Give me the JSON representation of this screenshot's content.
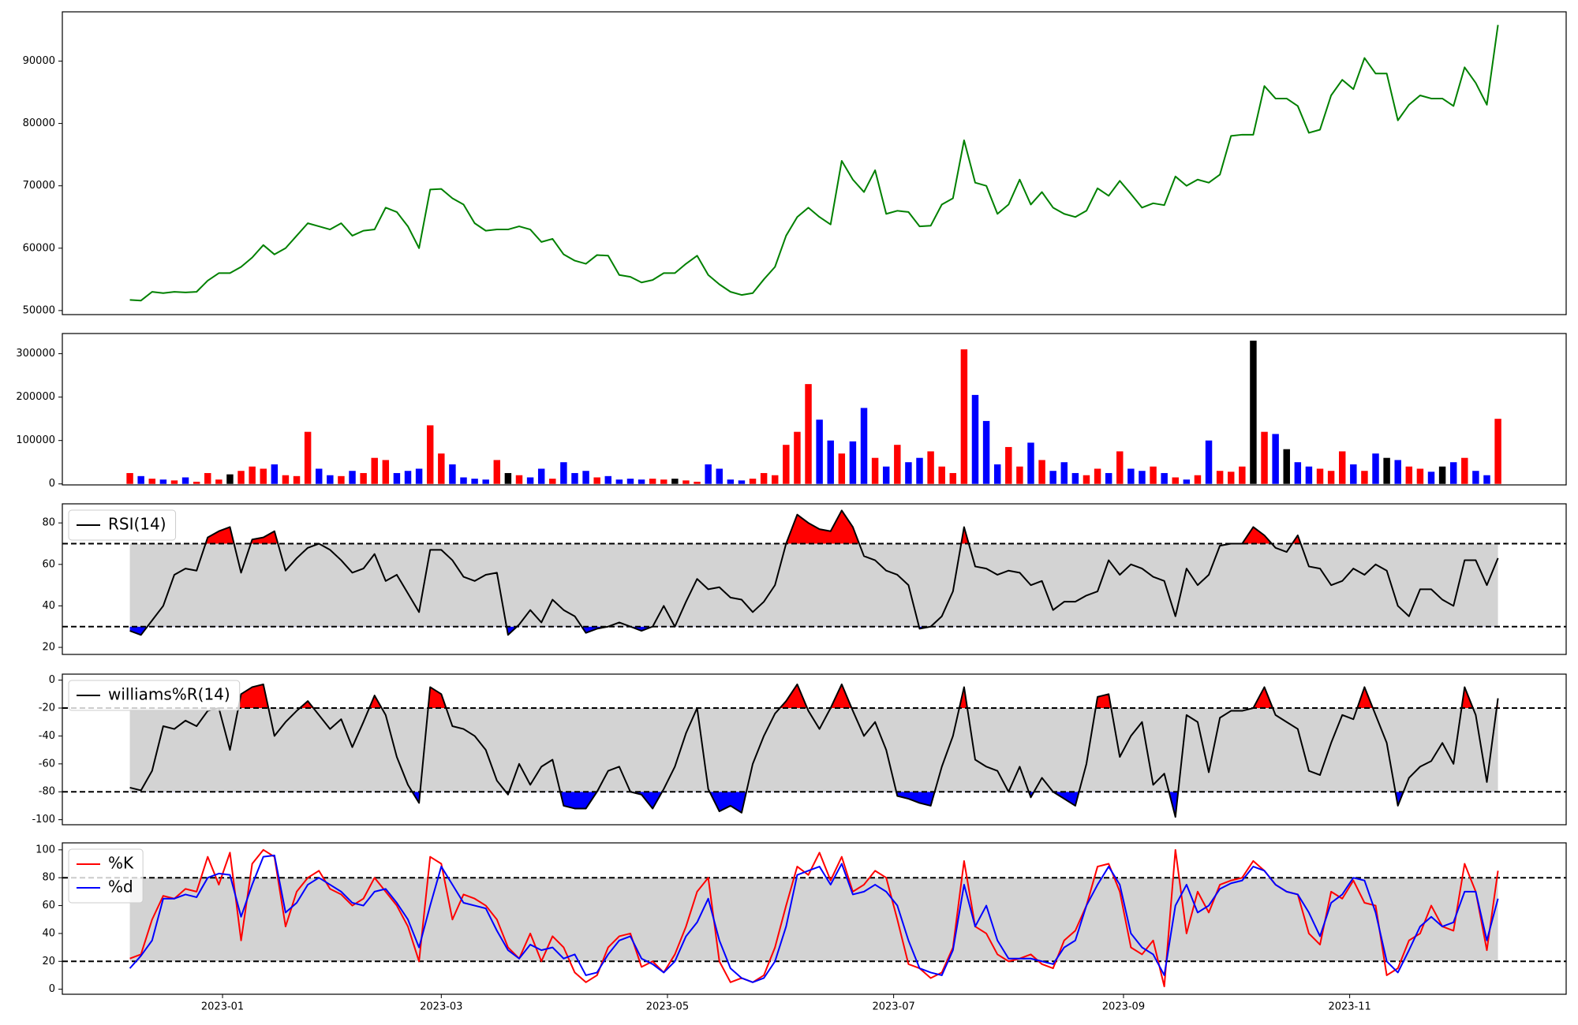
{
  "chart_data": [
    {
      "type": "line",
      "series": [
        {
          "color": "green",
          "values": [
            51700,
            51600,
            53000,
            52800,
            53000,
            52900,
            53000,
            54800,
            56000,
            56000,
            57000,
            58500,
            60500,
            59000,
            60000,
            62000,
            64000,
            63500,
            63000,
            64000,
            62000,
            62800,
            63000,
            66500,
            65800,
            63500,
            60000,
            69400,
            69500,
            68000,
            67000,
            64000,
            62800,
            63000,
            63000,
            63500,
            63000,
            61000,
            61500,
            59000,
            58000,
            57500,
            58900,
            58800,
            55700,
            55400,
            54500,
            54900,
            56000,
            56000,
            57500,
            58800,
            55700,
            54200,
            53000,
            52500,
            52800,
            55000,
            57000,
            62000,
            65000,
            66500,
            65000,
            63800,
            74000,
            71000,
            69000,
            72500,
            65500,
            66000,
            65800,
            63500,
            63600,
            67000,
            68000,
            77300,
            70500,
            70000,
            65500,
            67000,
            71000,
            67000,
            69000,
            66500,
            65500,
            65000,
            66000,
            69600,
            68400,
            70800,
            68700,
            66500,
            67200,
            66900,
            71500,
            70000,
            71000,
            70500,
            71800,
            78000,
            78200,
            78200,
            86000,
            84000,
            84000,
            82800,
            78500,
            79000,
            84500,
            87000,
            85500,
            90500,
            88000,
            88000,
            80500,
            83000,
            84500,
            84000,
            84000,
            82800,
            89000,
            86500,
            83000,
            95800
          ]
        }
      ],
      "xlim": [
        -6.07,
        129.13
      ],
      "ylim": [
        49350,
        97900
      ],
      "yticks": [
        50000,
        60000,
        70000,
        80000,
        90000
      ]
    },
    {
      "type": "bar",
      "values": [
        25000,
        18000,
        12000,
        10000,
        8000,
        15000,
        5000,
        25000,
        10000,
        22000,
        30000,
        40000,
        35000,
        45000,
        20000,
        18000,
        120000,
        35000,
        20000,
        18000,
        30000,
        25000,
        60000,
        55000,
        25000,
        30000,
        35000,
        135000,
        70000,
        45000,
        15000,
        12000,
        10000,
        55000,
        25000,
        20000,
        15000,
        35000,
        12000,
        50000,
        25000,
        30000,
        15000,
        18000,
        10000,
        12000,
        10000,
        12000,
        10000,
        12000,
        8000,
        5000,
        45000,
        35000,
        10000,
        8000,
        12000,
        25000,
        20000,
        90000,
        120000,
        230000,
        148000,
        100000,
        70000,
        98000,
        175000,
        60000,
        40000,
        90000,
        50000,
        60000,
        75000,
        40000,
        25000,
        310000,
        205000,
        145000,
        45000,
        85000,
        40000,
        95000,
        55000,
        30000,
        50000,
        25000,
        20000,
        35000,
        25000,
        75000,
        35000,
        30000,
        40000,
        25000,
        15000,
        10000,
        20000,
        100000,
        30000,
        28000,
        40000,
        330000,
        120000,
        115000,
        80000,
        50000,
        40000,
        35000,
        30000,
        75000,
        45000,
        30000,
        70000,
        60000,
        55000,
        40000,
        35000,
        28000,
        40000,
        50000,
        60000,
        30000,
        20000,
        150000
      ],
      "up_color": "red",
      "down_color": "blue",
      "flat_color": "black",
      "xlim": [
        -6.07,
        129.13
      ],
      "ylim": [
        -2300,
        346500
      ],
      "yticks": [
        0,
        100000,
        200000,
        300000
      ]
    },
    {
      "type": "line",
      "series": [
        {
          "name": "RSI(14)",
          "color": "black",
          "values": [
            28,
            26,
            33,
            40,
            55,
            58,
            57,
            73,
            76,
            78,
            56,
            72,
            73,
            76,
            57,
            63,
            68,
            70,
            67,
            62,
            56,
            58,
            65,
            52,
            55,
            46,
            37,
            67,
            67,
            62,
            54,
            52,
            55,
            56,
            26,
            31,
            38,
            32,
            43,
            38,
            35,
            27,
            29,
            30,
            32,
            30,
            28,
            30,
            40,
            30,
            42,
            53,
            48,
            49,
            44,
            43,
            37,
            42,
            50,
            70,
            84,
            80,
            77,
            76,
            86,
            78,
            64,
            62,
            57,
            55,
            50,
            29,
            30,
            35,
            47,
            78,
            59,
            58,
            55,
            57,
            56,
            50,
            52,
            38,
            42,
            42,
            45,
            47,
            62,
            55,
            60,
            58,
            54,
            52,
            35,
            58,
            50,
            55,
            69,
            70,
            70,
            78,
            74,
            68,
            66,
            74,
            59,
            58,
            50,
            52,
            58,
            55,
            60,
            57,
            40,
            35,
            48,
            48,
            43,
            40,
            62,
            62,
            50,
            63
          ]
        }
      ],
      "bands": [
        30,
        70
      ],
      "band_color": "lightgray",
      "upper_color": "red",
      "lower_color": "blue",
      "legend": "upper left",
      "xlim": [
        -6.07,
        129.13
      ],
      "ylim": [
        16.6,
        89.2
      ],
      "yticks": [
        20,
        40,
        60,
        80
      ]
    },
    {
      "type": "line",
      "series": [
        {
          "name": "williams%R(14)",
          "color": "black",
          "values": [
            -77,
            -79,
            -65,
            -33,
            -35,
            -29,
            -33,
            -22,
            -20,
            -50,
            -10,
            -5,
            -3,
            -40,
            -30,
            -22,
            -15,
            -25,
            -35,
            -28,
            -48,
            -30,
            -11,
            -25,
            -55,
            -75,
            -88,
            -5,
            -10,
            -33,
            -35,
            -40,
            -50,
            -72,
            -82,
            -60,
            -75,
            -62,
            -57,
            -90,
            -92,
            -92,
            -80,
            -65,
            -62,
            -80,
            -82,
            -92,
            -78,
            -62,
            -38,
            -20,
            -78,
            -94,
            -90,
            -95,
            -60,
            -40,
            -24,
            -15,
            -3,
            -22,
            -35,
            -20,
            -3,
            -22,
            -40,
            -30,
            -50,
            -83,
            -85,
            -88,
            -90,
            -62,
            -40,
            -5,
            -57,
            -62,
            -65,
            -80,
            -62,
            -84,
            -70,
            -80,
            -85,
            -90,
            -60,
            -12,
            -10,
            -55,
            -40,
            -30,
            -75,
            -67,
            -98,
            -25,
            -30,
            -66,
            -27,
            -22,
            -22,
            -20,
            -5,
            -25,
            -30,
            -35,
            -65,
            -68,
            -45,
            -25,
            -28,
            -5,
            -25,
            -45,
            -90,
            -70,
            -62,
            -58,
            -45,
            -60,
            -5,
            -25,
            -73,
            -13
          ]
        }
      ],
      "bands": [
        -80,
        -20
      ],
      "band_color": "lightgray",
      "upper_color": "red",
      "lower_color": "blue",
      "legend": "upper left",
      "xlim": [
        -6.07,
        129.13
      ],
      "ylim": [
        -103.6,
        4.3
      ],
      "yticks": [
        -100,
        -80,
        -60,
        -40,
        -20,
        0
      ]
    },
    {
      "type": "line",
      "series": [
        {
          "name": "%K",
          "color": "red",
          "values": [
            22,
            25,
            50,
            67,
            65,
            72,
            70,
            95,
            75,
            98,
            35,
            90,
            100,
            95,
            45,
            70,
            80,
            85,
            72,
            68,
            60,
            65,
            80,
            70,
            60,
            45,
            20,
            95,
            90,
            50,
            68,
            65,
            60,
            50,
            30,
            22,
            40,
            20,
            38,
            30,
            12,
            5,
            10,
            30,
            38,
            40,
            16,
            20,
            12,
            25,
            45,
            70,
            80,
            20,
            5,
            8,
            5,
            10,
            30,
            60,
            88,
            82,
            98,
            78,
            95,
            70,
            75,
            85,
            80,
            50,
            18,
            15,
            8,
            12,
            30,
            92,
            45,
            40,
            25,
            20,
            22,
            25,
            18,
            15,
            35,
            42,
            60,
            88,
            90,
            70,
            30,
            25,
            35,
            2,
            100,
            40,
            70,
            55,
            75,
            78,
            80,
            92,
            85,
            75,
            70,
            68,
            40,
            32,
            70,
            65,
            78,
            62,
            60,
            10,
            15,
            35,
            40,
            60,
            45,
            42,
            90,
            70,
            28,
            85
          ]
        },
        {
          "name": "%d",
          "color": "blue",
          "values": [
            15,
            24,
            35,
            65,
            65,
            68,
            66,
            80,
            83,
            82,
            52,
            75,
            95,
            96,
            55,
            62,
            75,
            80,
            75,
            70,
            62,
            60,
            70,
            72,
            62,
            50,
            30,
            60,
            88,
            75,
            62,
            60,
            58,
            42,
            28,
            22,
            32,
            28,
            30,
            22,
            25,
            10,
            12,
            25,
            35,
            38,
            22,
            18,
            12,
            20,
            38,
            48,
            65,
            35,
            15,
            8,
            5,
            8,
            20,
            45,
            82,
            85,
            88,
            75,
            90,
            68,
            70,
            75,
            70,
            60,
            35,
            15,
            12,
            10,
            28,
            75,
            45,
            60,
            35,
            22,
            22,
            22,
            20,
            18,
            30,
            35,
            60,
            75,
            88,
            75,
            40,
            30,
            25,
            10,
            60,
            75,
            55,
            60,
            72,
            76,
            78,
            88,
            85,
            75,
            70,
            68,
            55,
            38,
            62,
            68,
            80,
            78,
            55,
            20,
            12,
            28,
            45,
            52,
            45,
            48,
            70,
            70,
            35,
            65
          ]
        }
      ],
      "bands": [
        20,
        80
      ],
      "band_color": "lightgray",
      "legend": "upper left",
      "xlim": [
        -6.07,
        129.13
      ],
      "ylim": [
        -3.6,
        105
      ],
      "yticks": [
        0,
        20,
        40,
        60,
        80,
        100
      ],
      "xticks": [
        {
          "value": 8.333,
          "label": "2023-01"
        },
        {
          "value": 28,
          "label": "2023-03"
        },
        {
          "value": 48.333,
          "label": "2023-05"
        },
        {
          "value": 68.667,
          "label": "2023-07"
        },
        {
          "value": 89.333,
          "label": "2023-09"
        },
        {
          "value": 109.667,
          "label": "2023-11"
        }
      ]
    }
  ]
}
